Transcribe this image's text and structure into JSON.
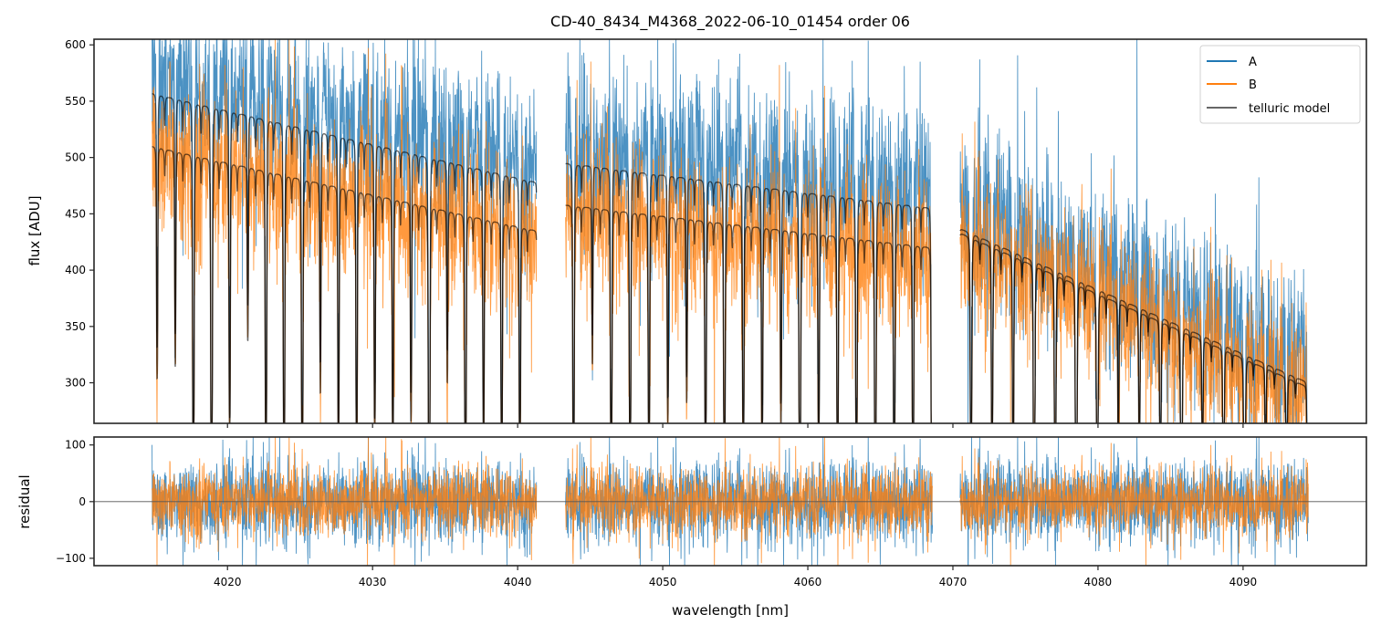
{
  "chart_data": [
    {
      "panel": "flux",
      "type": "line",
      "title": "CD-40_8434_M4368_2022-06-10_01454  order 06",
      "xlabel": "wavelength [nm]",
      "ylabel": "flux [ADU]",
      "xlim": [
        4010.8,
        4098.5
      ],
      "ylim": [
        264,
        605
      ],
      "xticks": [
        4020,
        4030,
        4040,
        4050,
        4060,
        4070,
        4080,
        4090
      ],
      "yticks": [
        300,
        350,
        400,
        450,
        500,
        550,
        600
      ],
      "grid": false,
      "legend": {
        "placement": "top-right",
        "entries": [
          {
            "label": "A",
            "color": "#1f77b4"
          },
          {
            "label": "B",
            "color": "#ff7f0e"
          },
          {
            "label": "telluric model",
            "color": "#666666"
          }
        ]
      },
      "segments": [
        {
          "x_start": 4014.8,
          "x_end": 4041.3,
          "model_A": [
            557,
            478
          ],
          "model_B": [
            510,
            435
          ],
          "line_spacing": 1.25
        },
        {
          "x_start": 4043.3,
          "x_end": 4068.6,
          "model_A": [
            495,
            455
          ],
          "model_B": [
            458,
            420
          ],
          "line_spacing": 1.3
        },
        {
          "x_start": 4070.5,
          "x_end": 4094.5,
          "model_A": [
            437,
            300
          ],
          "model_B": [
            433,
            296
          ],
          "line_spacing": 1.45
        }
      ],
      "series": [
        {
          "name": "A",
          "color": "#1f77b4",
          "noise_sigma": 38
        },
        {
          "name": "B",
          "color": "#ff7f0e",
          "noise_sigma": 34
        },
        {
          "name": "telluric model",
          "color": "#000000"
        }
      ]
    },
    {
      "panel": "residual",
      "type": "line",
      "xlabel": "wavelength [nm]",
      "ylabel": "residual",
      "xlim": [
        4010.8,
        4098.5
      ],
      "ylim": [
        -113,
        114
      ],
      "xticks": [
        4020,
        4030,
        4040,
        4050,
        4060,
        4070,
        4080,
        4090
      ],
      "yticks": [
        -100,
        0,
        100
      ],
      "zero_line": 0,
      "series": [
        {
          "name": "A",
          "color": "#1f77b4",
          "noise_sigma": 38
        },
        {
          "name": "B",
          "color": "#ff7f0e",
          "noise_sigma": 30
        }
      ]
    }
  ]
}
